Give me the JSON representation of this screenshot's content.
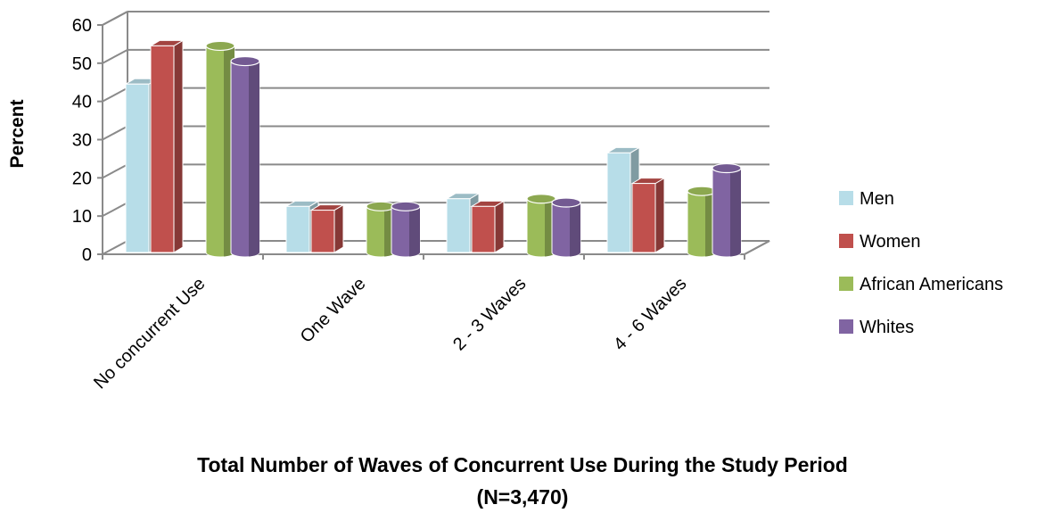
{
  "chart_data": {
    "type": "bar",
    "style": "3d-clustered",
    "categories": [
      "No concurrent Use",
      "One Wave",
      "2 - 3 Waves",
      "4 - 6 Waves"
    ],
    "series": [
      {
        "name": "Men",
        "values": [
          45,
          13,
          15,
          27
        ],
        "color": "#b7dde8"
      },
      {
        "name": "Women",
        "values": [
          55,
          12,
          13,
          19
        ],
        "color": "#c0504d"
      },
      {
        "name": "African Americans",
        "values": [
          55,
          13,
          15,
          17
        ],
        "color": "#9bbb59"
      },
      {
        "name": "Whites",
        "values": [
          51,
          13,
          14,
          23
        ],
        "color": "#8064a2"
      }
    ],
    "ylabel": "Percent",
    "xlabel_line1": "Total Number of Waves of Concurrent Use During the Study Period",
    "xlabel_line2": "(N=3,470)",
    "ylim": [
      0,
      60
    ],
    "yticks": [
      0,
      10,
      20,
      30,
      40,
      50,
      60
    ],
    "grid": true,
    "legend_position": "right"
  }
}
